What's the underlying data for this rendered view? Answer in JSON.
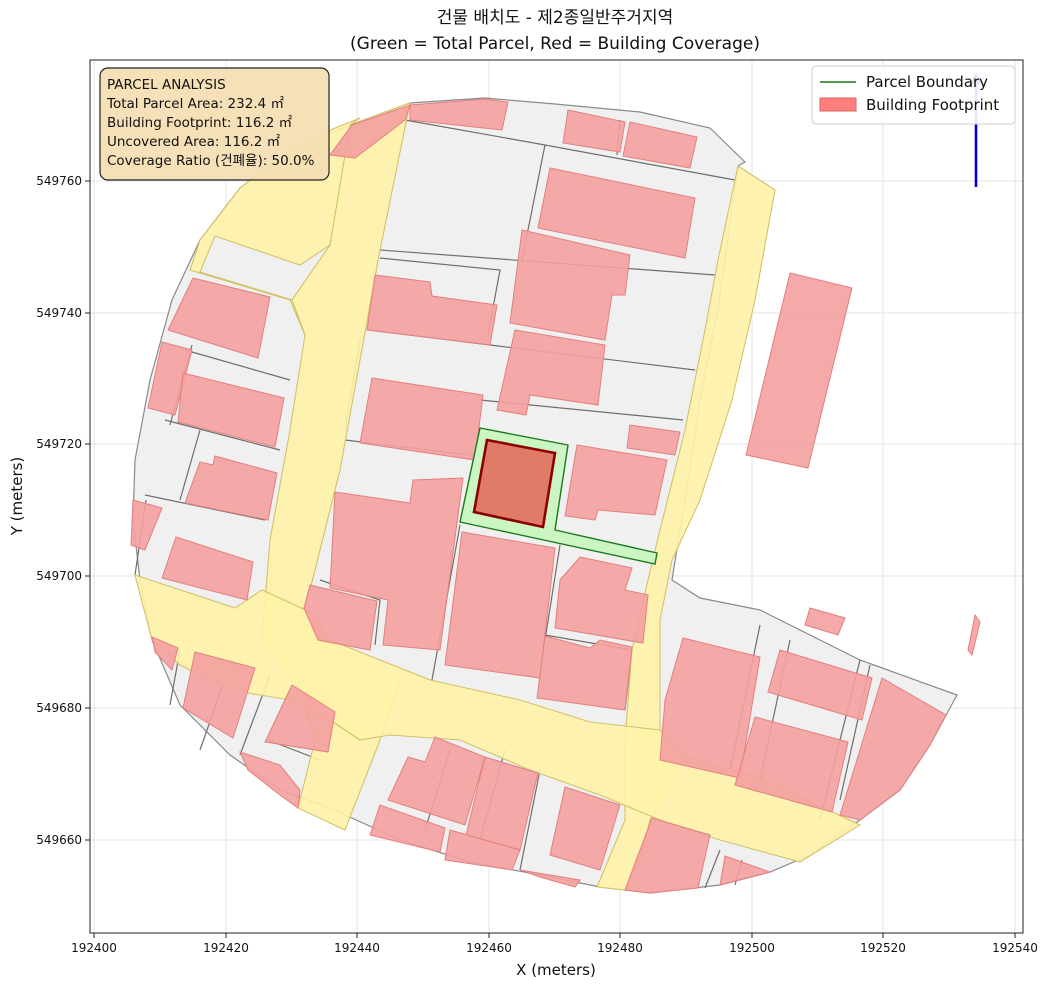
{
  "title": {
    "line1": "건물 배치도 - 제2종일반주거지역",
    "line2": "(Green = Total Parcel, Red = Building Coverage)"
  },
  "axes": {
    "xlabel": "X (meters)",
    "ylabel": "Y (meters)",
    "xlim": [
      192400,
      192540
    ],
    "ylim": [
      549647,
      549778
    ],
    "xticks": [
      192400,
      192420,
      192440,
      192460,
      192480,
      192500,
      192520,
      192540
    ],
    "yticks": [
      549660,
      549680,
      549700,
      549720,
      549740,
      549760
    ],
    "grid": true
  },
  "info_box": {
    "heading": "PARCEL ANALYSIS",
    "total_area": "Total Parcel Area: 232.4 ㎡",
    "footprint": "Building Footprint: 116.2 ㎡",
    "uncovered": "Uncovered Area: 116.2 ㎡",
    "coverage": "Coverage Ratio (건폐율): 50.0%",
    "placement": "top-left"
  },
  "legend": {
    "placement": "top-right",
    "items": [
      {
        "label": "Parcel Boundary",
        "color": "#1a7a1a",
        "kind": "line"
      },
      {
        "label": "Building Footprint",
        "color": "#ff7f7f",
        "kind": "patch"
      }
    ]
  },
  "colors": {
    "road": "#fff2a8",
    "parcel_bg": "#f0f0f0",
    "building": "#f4a0a0",
    "target_parcel": "#c8f5c0",
    "target_building": "#e07b68",
    "north_arrow": "#0000dd"
  }
}
